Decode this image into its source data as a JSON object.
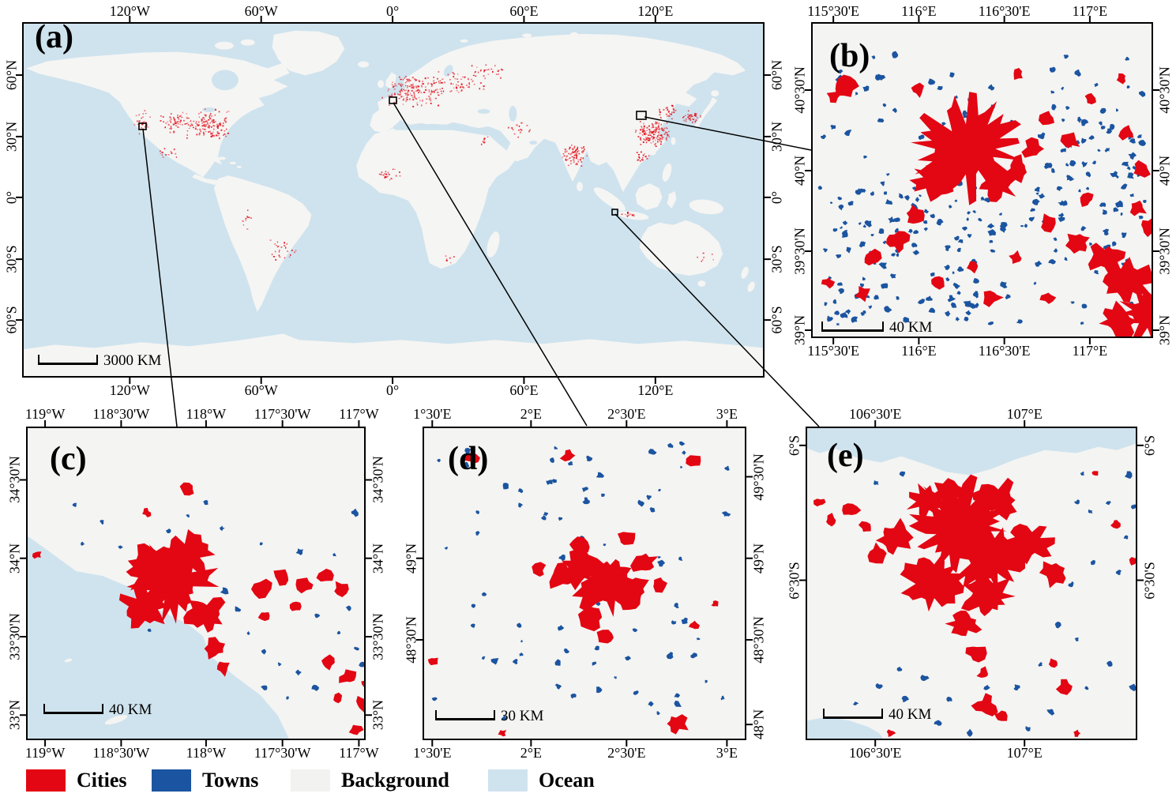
{
  "colors": {
    "cities": "#e30613",
    "towns": "#1b54a0",
    "background": "#f4f4f2",
    "ocean": "#cfe3ee",
    "world_land": "#f5f5f3"
  },
  "panels": {
    "a": {
      "label": "(a)",
      "scale": "3000 KM",
      "x_ticks": [
        "120°W",
        "60°W",
        "0°",
        "60°E",
        "120°E"
      ],
      "y_ticks": [
        "60°N",
        "30°N",
        "0°",
        "30°S",
        "60°S"
      ]
    },
    "b": {
      "label": "(b)",
      "scale": "40 KM",
      "x_ticks": [
        "115°30'E",
        "116°E",
        "116°30'E",
        "117°E"
      ],
      "y_ticks": [
        "40°30'N",
        "40°N",
        "39°30'N",
        "39°N"
      ]
    },
    "c": {
      "label": "(c)",
      "scale": "40 KM",
      "x_ticks": [
        "119°W",
        "118°30'W",
        "118°W",
        "117°30'W",
        "117°W"
      ],
      "y_ticks": [
        "34°30'N",
        "34°N",
        "33°30'N",
        "33°N"
      ]
    },
    "d": {
      "label": "(d)",
      "scale": "30 KM",
      "x_ticks": [
        "1°30'E",
        "2°E",
        "2°30'E",
        "3°E"
      ],
      "y_ticks": [
        "49°30'N",
        "49°N",
        "48°30'N",
        "48°N"
      ],
      "y_ticks_left": [
        "49°N",
        "48°30'N"
      ]
    },
    "e": {
      "label": "(e)",
      "scale": "40 KM",
      "x_ticks": [
        "106°30'E",
        "107°E"
      ],
      "y_ticks": [
        "6°S",
        "6°30'S"
      ]
    }
  },
  "legend": {
    "items": [
      {
        "label": "Cities",
        "color": "#e30613"
      },
      {
        "label": "Towns",
        "color": "#1b54a0"
      },
      {
        "label": "Background",
        "color": "#f2f2f0"
      },
      {
        "label": "Ocean",
        "color": "#cfe3ee"
      }
    ]
  }
}
